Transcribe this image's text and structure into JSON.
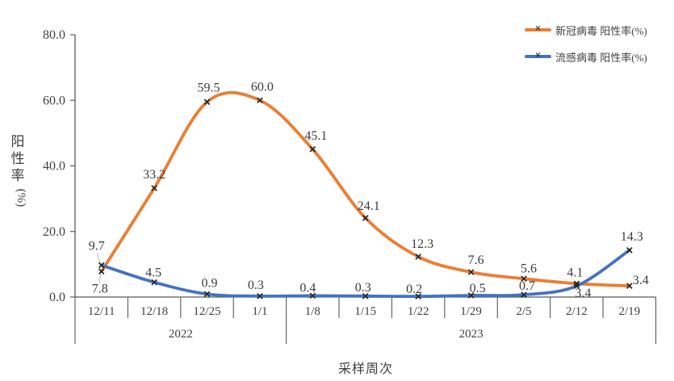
{
  "chart_data": {
    "type": "line",
    "title": "",
    "xlabel": "采样周次",
    "ylabel": "阳性率(%)",
    "ylabel_stacked": [
      "阳",
      "性",
      "率"
    ],
    "ylabel_unit": "(%)",
    "ylim": [
      0,
      80
    ],
    "y_ticks": [
      "0.0",
      "20.0",
      "40.0",
      "60.0",
      "80.0"
    ],
    "y_tick_values": [
      0,
      20,
      40,
      60,
      80
    ],
    "grid": false,
    "legend_position": "top-right",
    "categories": [
      "12/11",
      "12/18",
      "12/25",
      "1/1",
      "1/8",
      "1/15",
      "1/22",
      "1/29",
      "2/5",
      "2/12",
      "2/19"
    ],
    "year_groups": [
      {
        "label": "2022",
        "start_index": 0,
        "end_index": 3
      },
      {
        "label": "2023",
        "start_index": 4,
        "end_index": 10
      }
    ],
    "series": [
      {
        "name": "新冠病毒 阳性率(%)",
        "color": "#ED7D31",
        "marker": "x",
        "smooth": true,
        "values": [
          7.8,
          33.2,
          59.5,
          60.0,
          45.1,
          24.1,
          12.3,
          7.6,
          5.6,
          4.1,
          3.4
        ]
      },
      {
        "name": "流感病毒 阳性率(%)",
        "color": "#4472C4",
        "marker": "x",
        "smooth": true,
        "values": [
          9.7,
          4.5,
          0.9,
          0.3,
          0.4,
          0.3,
          0.2,
          0.5,
          0.7,
          3.4,
          14.3
        ]
      }
    ],
    "marker_color": "#262626",
    "axis_color": "#595959",
    "text_color": "#404040"
  }
}
